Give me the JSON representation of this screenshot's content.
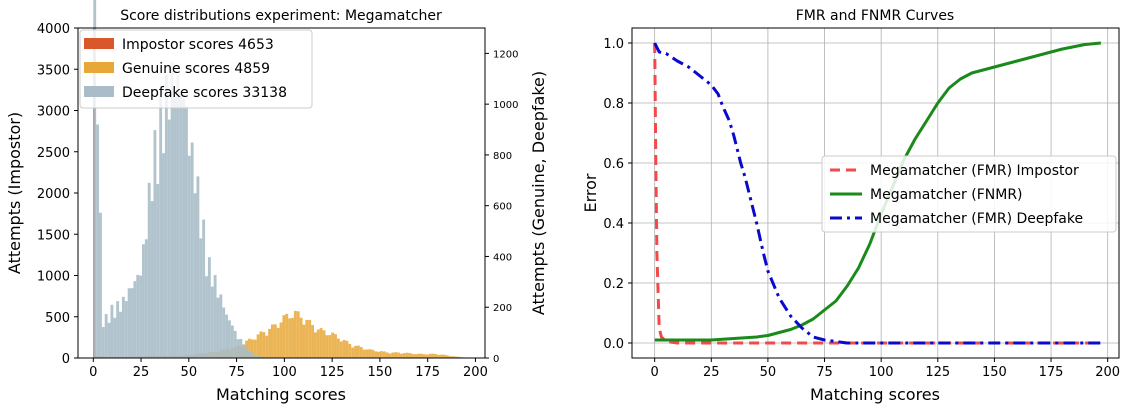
{
  "chart_data": [
    {
      "type": "histogram",
      "title": "Score distributions experiment: Megamatcher",
      "xlabel": "Matching scores",
      "ylabel_left": "Attempts (Impostor)",
      "ylabel_right": "Attempts (Genuine, Deepfake)",
      "xlim": [
        -8,
        205
      ],
      "ylim_left": [
        0,
        4000
      ],
      "ylim_right": [
        0,
        1300
      ],
      "x_ticks": [
        0,
        25,
        50,
        75,
        100,
        125,
        150,
        175,
        200
      ],
      "y_ticks_left": [
        0,
        500,
        1000,
        1500,
        2000,
        2500,
        3000,
        3500,
        4000
      ],
      "y_ticks_right": [
        0,
        200,
        400,
        600,
        800,
        1000,
        1200
      ],
      "legend_position": "upper-left",
      "series": [
        {
          "name": "Impostor scores 4653",
          "color": "#d9572b",
          "axis": "left",
          "bins": [
            [
              0,
              4000
            ],
            [
              1,
              4000
            ]
          ]
        },
        {
          "name": "Genuine scores 4859",
          "color": "#e8a838",
          "axis": "right",
          "points": [
            [
              0,
              10
            ],
            [
              5,
              5
            ],
            [
              10,
              5
            ],
            [
              20,
              5
            ],
            [
              30,
              8
            ],
            [
              40,
              8
            ],
            [
              50,
              10
            ],
            [
              60,
              20
            ],
            [
              65,
              25
            ],
            [
              70,
              35
            ],
            [
              75,
              40
            ],
            [
              80,
              60
            ],
            [
              85,
              80
            ],
            [
              90,
              100
            ],
            [
              95,
              120
            ],
            [
              100,
              150
            ],
            [
              105,
              170
            ],
            [
              110,
              150
            ],
            [
              115,
              120
            ],
            [
              120,
              100
            ],
            [
              125,
              90
            ],
            [
              130,
              70
            ],
            [
              135,
              50
            ],
            [
              140,
              40
            ],
            [
              145,
              30
            ],
            [
              150,
              25
            ],
            [
              155,
              20
            ],
            [
              160,
              20
            ],
            [
              165,
              18
            ],
            [
              170,
              15
            ],
            [
              175,
              15
            ],
            [
              180,
              15
            ],
            [
              185,
              10
            ],
            [
              190,
              5
            ],
            [
              195,
              2
            ]
          ]
        },
        {
          "name": "Deepfake scores 33138",
          "color": "#a9bcc8",
          "axis": "right",
          "points": [
            [
              0,
              1300
            ],
            [
              1,
              1300
            ],
            [
              5,
              130
            ],
            [
              10,
              180
            ],
            [
              15,
              200
            ],
            [
              20,
              260
            ],
            [
              25,
              320
            ],
            [
              28,
              500
            ],
            [
              30,
              650
            ],
            [
              33,
              800
            ],
            [
              36,
              900
            ],
            [
              38,
              950
            ],
            [
              40,
              1000
            ],
            [
              42,
              1030
            ],
            [
              45,
              1000
            ],
            [
              48,
              950
            ],
            [
              50,
              800
            ],
            [
              53,
              700
            ],
            [
              55,
              600
            ],
            [
              58,
              450
            ],
            [
              60,
              350
            ],
            [
              63,
              300
            ],
            [
              65,
              250
            ],
            [
              68,
              200
            ],
            [
              70,
              150
            ],
            [
              73,
              120
            ],
            [
              75,
              80
            ],
            [
              78,
              60
            ],
            [
              80,
              40
            ],
            [
              83,
              20
            ],
            [
              85,
              10
            ],
            [
              88,
              5
            ],
            [
              90,
              2
            ]
          ]
        }
      ]
    },
    {
      "type": "line",
      "title": "FMR and FNMR Curves",
      "xlabel": "Matching scores",
      "ylabel": "Error",
      "xlim": [
        -10,
        205
      ],
      "ylim": [
        -0.05,
        1.05
      ],
      "x_ticks": [
        0,
        25,
        50,
        75,
        100,
        125,
        150,
        175,
        200
      ],
      "y_ticks": [
        0.0,
        0.2,
        0.4,
        0.6,
        0.8,
        1.0
      ],
      "grid": true,
      "legend_position": "center-right",
      "series": [
        {
          "name": "Megamatcher (FMR) Impostor",
          "color": "#f04a4a",
          "style": "dashed",
          "points": [
            [
              0,
              1.0
            ],
            [
              0.5,
              0.6
            ],
            [
              1,
              0.3
            ],
            [
              2,
              0.05
            ],
            [
              3,
              0.02
            ],
            [
              5,
              0.005
            ],
            [
              10,
              0.0
            ],
            [
              50,
              0.0
            ],
            [
              100,
              0.0
            ],
            [
              150,
              0.0
            ],
            [
              197,
              0.0
            ]
          ]
        },
        {
          "name": "Megamatcher (FNMR)",
          "color": "#1a8a1a",
          "style": "solid",
          "points": [
            [
              0,
              0.01
            ],
            [
              10,
              0.01
            ],
            [
              25,
              0.01
            ],
            [
              35,
              0.015
            ],
            [
              45,
              0.02
            ],
            [
              50,
              0.025
            ],
            [
              55,
              0.035
            ],
            [
              60,
              0.045
            ],
            [
              65,
              0.06
            ],
            [
              70,
              0.08
            ],
            [
              75,
              0.11
            ],
            [
              80,
              0.14
            ],
            [
              85,
              0.19
            ],
            [
              90,
              0.25
            ],
            [
              95,
              0.33
            ],
            [
              100,
              0.43
            ],
            [
              105,
              0.52
            ],
            [
              110,
              0.61
            ],
            [
              115,
              0.68
            ],
            [
              120,
              0.74
            ],
            [
              125,
              0.8
            ],
            [
              130,
              0.85
            ],
            [
              135,
              0.88
            ],
            [
              140,
              0.9
            ],
            [
              145,
              0.91
            ],
            [
              150,
              0.92
            ],
            [
              160,
              0.94
            ],
            [
              170,
              0.96
            ],
            [
              180,
              0.98
            ],
            [
              190,
              0.995
            ],
            [
              197,
              1.0
            ]
          ]
        },
        {
          "name": "Megamatcher (FMR) Deepfake",
          "color": "#0a0acc",
          "style": "dashdot",
          "points": [
            [
              0,
              1.0
            ],
            [
              2,
              0.97
            ],
            [
              5,
              0.965
            ],
            [
              8,
              0.95
            ],
            [
              10,
              0.94
            ],
            [
              15,
              0.92
            ],
            [
              20,
              0.89
            ],
            [
              25,
              0.86
            ],
            [
              28,
              0.83
            ],
            [
              30,
              0.79
            ],
            [
              33,
              0.74
            ],
            [
              35,
              0.69
            ],
            [
              38,
              0.6
            ],
            [
              40,
              0.55
            ],
            [
              42,
              0.49
            ],
            [
              45,
              0.4
            ],
            [
              48,
              0.3
            ],
            [
              50,
              0.24
            ],
            [
              55,
              0.15
            ],
            [
              60,
              0.09
            ],
            [
              65,
              0.05
            ],
            [
              70,
              0.02
            ],
            [
              75,
              0.01
            ],
            [
              80,
              0.005
            ],
            [
              85,
              0.0
            ],
            [
              100,
              0.0
            ],
            [
              150,
              0.0
            ],
            [
              197,
              0.0
            ]
          ]
        }
      ]
    }
  ]
}
